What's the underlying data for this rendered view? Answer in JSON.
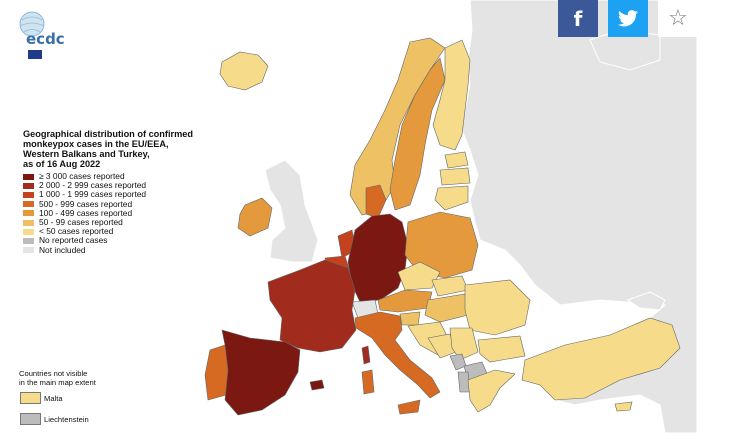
{
  "logo": {
    "text": "ecdc"
  },
  "legend": {
    "title_lines": [
      "Geographical distribution of confirmed",
      "monkeypox cases in the EU/EEA,",
      "Western Balkans and Turkey,",
      "as of 16 Aug 2022"
    ],
    "items": [
      {
        "label": "≥ 3 000 cases reported",
        "color": "#7b1812"
      },
      {
        "label": "2 000 - 2 999 cases reported",
        "color": "#a12b1c"
      },
      {
        "label": "1 000 - 1 999 cases reported",
        "color": "#c4431e"
      },
      {
        "label": "500 - 999 cases reported",
        "color": "#d66a22"
      },
      {
        "label": "100 - 499 cases reported",
        "color": "#e49a3c"
      },
      {
        "label": "50 - 99 cases reported",
        "color": "#eec164"
      },
      {
        "label": "< 50 cases reported",
        "color": "#f6dc8a"
      },
      {
        "label": "No reported cases",
        "color": "#bcbcbc"
      },
      {
        "label": "Not included",
        "color": "#e4e4e4"
      }
    ]
  },
  "inset": {
    "title_lines": [
      "Countries not visible",
      "in the main map extent"
    ],
    "items": [
      {
        "label": "Malta",
        "color": "#f6dc8a"
      },
      {
        "label": "Liechtenstein",
        "color": "#bcbcbc"
      }
    ]
  },
  "social": [
    {
      "name": "facebook-icon",
      "glyph": "f"
    },
    {
      "name": "twitter-icon",
      "glyph": ""
    },
    {
      "name": "star-icon",
      "glyph": "☆"
    }
  ],
  "colors": {
    "sea": "#ffffff",
    "not_included": "#e4e4e4",
    "no_cases": "#bcbcbc"
  }
}
